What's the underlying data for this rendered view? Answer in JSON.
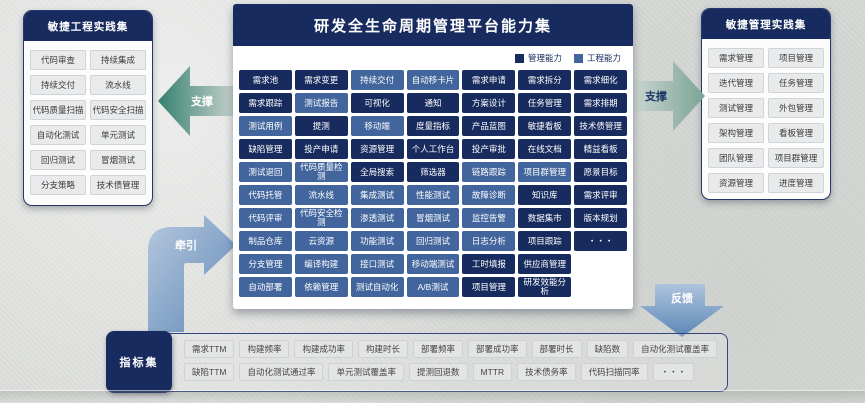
{
  "center": {
    "title": "研发全生命周期管理平台能力集",
    "legend": [
      {
        "key": "m",
        "label": "管理能力",
        "color": "#172b5e"
      },
      {
        "key": "e",
        "label": "工程能力",
        "color": "#41659c"
      }
    ],
    "grid": [
      [
        {
          "label": "需求池",
          "type": "m"
        },
        {
          "label": "需求变更",
          "type": "m"
        },
        {
          "label": "持续交付",
          "type": "e"
        },
        {
          "label": "自动移卡片",
          "type": "e"
        },
        {
          "label": "需求申请",
          "type": "m"
        },
        {
          "label": "需求拆分",
          "type": "m"
        },
        {
          "label": "需求细化",
          "type": "m"
        }
      ],
      [
        {
          "label": "需求跟踪",
          "type": "m"
        },
        {
          "label": "测试报告",
          "type": "e"
        },
        {
          "label": "可视化",
          "type": "m"
        },
        {
          "label": "通知",
          "type": "m"
        },
        {
          "label": "方案设计",
          "type": "m"
        },
        {
          "label": "任务管理",
          "type": "m"
        },
        {
          "label": "需求排期",
          "type": "m"
        }
      ],
      [
        {
          "label": "测试用例",
          "type": "e"
        },
        {
          "label": "提测",
          "type": "m"
        },
        {
          "label": "移动端",
          "type": "e"
        },
        {
          "label": "度量指标",
          "type": "m"
        },
        {
          "label": "产品蓝图",
          "type": "m"
        },
        {
          "label": "敏捷看板",
          "type": "m"
        },
        {
          "label": "技术债管理",
          "type": "m"
        }
      ],
      [
        {
          "label": "缺陷管理",
          "type": "m"
        },
        {
          "label": "投产申请",
          "type": "m"
        },
        {
          "label": "资源管理",
          "type": "m"
        },
        {
          "label": "个人工作台",
          "type": "m"
        },
        {
          "label": "投产审批",
          "type": "m"
        },
        {
          "label": "在线文档",
          "type": "m"
        },
        {
          "label": "精益看板",
          "type": "m"
        }
      ],
      [
        {
          "label": "测试退回",
          "type": "e"
        },
        {
          "label": "代码质量检测",
          "type": "e"
        },
        {
          "label": "全局搜索",
          "type": "m"
        },
        {
          "label": "筛选器",
          "type": "m"
        },
        {
          "label": "链路跟踪",
          "type": "e"
        },
        {
          "label": "项目群管理",
          "type": "e"
        },
        {
          "label": "愿景目标",
          "type": "m"
        }
      ],
      [
        {
          "label": "代码托管",
          "type": "e"
        },
        {
          "label": "流水线",
          "type": "e"
        },
        {
          "label": "集成测试",
          "type": "e"
        },
        {
          "label": "性能测试",
          "type": "e"
        },
        {
          "label": "故障诊断",
          "type": "e"
        },
        {
          "label": "知识库",
          "type": "m"
        },
        {
          "label": "需求评审",
          "type": "m"
        }
      ],
      [
        {
          "label": "代码评审",
          "type": "e"
        },
        {
          "label": "代码安全检测",
          "type": "e"
        },
        {
          "label": "渗透测试",
          "type": "e"
        },
        {
          "label": "冒烟测试",
          "type": "e"
        },
        {
          "label": "监控告警",
          "type": "e"
        },
        {
          "label": "数据集市",
          "type": "m"
        },
        {
          "label": "版本规划",
          "type": "m"
        }
      ],
      [
        {
          "label": "制品仓库",
          "type": "e"
        },
        {
          "label": "云资源",
          "type": "e"
        },
        {
          "label": "功能测试",
          "type": "e"
        },
        {
          "label": "回归测试",
          "type": "e"
        },
        {
          "label": "日志分析",
          "type": "e"
        },
        {
          "label": "项目跟踪",
          "type": "m"
        },
        {
          "label": "・・・",
          "type": "m"
        }
      ],
      [
        {
          "label": "分支管理",
          "type": "e"
        },
        {
          "label": "编译构建",
          "type": "e"
        },
        {
          "label": "接口测试",
          "type": "e"
        },
        {
          "label": "移动端测试",
          "type": "e"
        },
        {
          "label": "工时填报",
          "type": "m"
        },
        {
          "label": "供应商管理",
          "type": "m"
        }
      ],
      [
        {
          "label": "自动部署",
          "type": "e"
        },
        {
          "label": "依赖管理",
          "type": "e"
        },
        {
          "label": "测试自动化",
          "type": "e"
        },
        {
          "label": "A/B测试",
          "type": "e"
        },
        {
          "label": "项目管理",
          "type": "m"
        },
        {
          "label": "研发效能分析",
          "type": "m"
        }
      ]
    ]
  },
  "left_panel": {
    "title": "敏捷工程实践集",
    "items": [
      "代码审查",
      "持续集成",
      "持续交付",
      "流水线",
      "代码质量扫描",
      "代码安全扫描",
      "自动化测试",
      "单元测试",
      "回归测试",
      "冒烟测试",
      "分支策略",
      "技术债管理"
    ]
  },
  "right_panel": {
    "title": "敏捷管理实践集",
    "items": [
      "需求管理",
      "项目管理",
      "迭代管理",
      "任务管理",
      "测试管理",
      "外包管理",
      "架构管理",
      "看板管理",
      "团队管理",
      "项目群管理",
      "资源管理",
      "进度管理"
    ]
  },
  "arrows": {
    "support_left": "支撑",
    "support_right": "支撑",
    "pull": "牵引",
    "feedback": "反馈"
  },
  "metrics": {
    "label": "指标集",
    "rows": [
      [
        "需求TTM",
        "构建频率",
        "构建成功率",
        "构建时长",
        "部署频率",
        "部署成功率",
        "部署时长",
        "缺陷数",
        "自动化测试覆盖率"
      ],
      [
        "缺陷TTM",
        "自动化测试通过率",
        "单元测试覆盖率",
        "提测回退数",
        "MTTR",
        "技术债务率",
        "代码扫描同率",
        "・・・"
      ]
    ]
  }
}
